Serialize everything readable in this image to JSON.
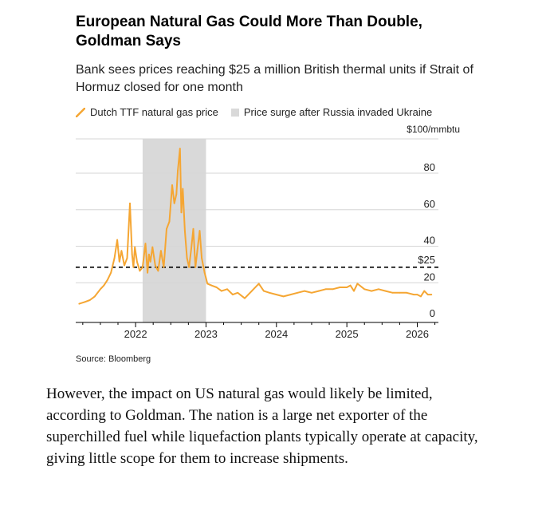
{
  "article": {
    "title": "European Natural Gas Could More Than Double, Goldman Says",
    "subtitle": "Bank sees prices reaching $25 a million British thermal units if Strait of Hormuz closed for one month",
    "source": "Source: Bloomberg",
    "body": "However, the impact on US natural gas would likely be limited, according to Goldman. The nation is a large net exporter of the superchilled fuel while liquefaction plants typically operate at capacity, giving little scope for them to increase shipments."
  },
  "colors": {
    "series": "#f5a633",
    "shade": "#d9d9d9",
    "reference": "#000000",
    "grid": "#d6d6d6",
    "text": "#222222"
  },
  "chart_data": {
    "type": "line",
    "y_unit_label": "$100/mmbtu",
    "ylim": [
      0,
      100
    ],
    "yticks": [
      0,
      20,
      40,
      60,
      80
    ],
    "xticks": [
      "2022",
      "2023",
      "2024",
      "2025",
      "2026"
    ],
    "x_range": [
      2021.15,
      2026.3
    ],
    "grid": true,
    "legend": {
      "placement": "top-left",
      "entries": [
        "Dutch TTF natural gas price",
        "Price surge after Russia invaded Ukraine"
      ]
    },
    "shaded_region": {
      "name": "Price surge after Russia invaded Ukraine",
      "x_start": 2022.1,
      "x_end": 2023.0
    },
    "reference_line": {
      "label": "$25",
      "value": 25
    },
    "series": [
      {
        "name": "Dutch TTF natural gas price",
        "x": [
          2021.2,
          2021.28,
          2021.35,
          2021.42,
          2021.5,
          2021.55,
          2021.6,
          2021.65,
          2021.7,
          2021.74,
          2021.77,
          2021.8,
          2021.84,
          2021.88,
          2021.92,
          2021.95,
          2021.97,
          2021.99,
          2022.02,
          2022.06,
          2022.1,
          2022.14,
          2022.17,
          2022.19,
          2022.21,
          2022.24,
          2022.28,
          2022.32,
          2022.36,
          2022.4,
          2022.44,
          2022.48,
          2022.52,
          2022.55,
          2022.58,
          2022.6,
          2022.63,
          2022.65,
          2022.67,
          2022.7,
          2022.73,
          2022.76,
          2022.79,
          2022.82,
          2022.85,
          2022.88,
          2022.91,
          2022.94,
          2022.98,
          2023.02,
          2023.08,
          2023.15,
          2023.22,
          2023.3,
          2023.38,
          2023.45,
          2023.55,
          2023.65,
          2023.75,
          2023.82,
          2023.9,
          2024.0,
          2024.1,
          2024.2,
          2024.3,
          2024.4,
          2024.5,
          2024.6,
          2024.7,
          2024.8,
          2024.9,
          2025.0,
          2025.05,
          2025.1,
          2025.15,
          2025.25,
          2025.35,
          2025.45,
          2025.55,
          2025.65,
          2025.75,
          2025.85,
          2025.95,
          2026.0,
          2026.05,
          2026.1,
          2026.15,
          2026.2
        ],
        "values": [
          5,
          6,
          7,
          9,
          13,
          15,
          18,
          22,
          30,
          40,
          28,
          34,
          26,
          30,
          60,
          32,
          25,
          36,
          28,
          23,
          25,
          38,
          22,
          32,
          28,
          36,
          26,
          23,
          34,
          25,
          46,
          50,
          70,
          60,
          65,
          78,
          90,
          55,
          68,
          45,
          30,
          25,
          35,
          46,
          25,
          35,
          45,
          30,
          22,
          16,
          15,
          14,
          12,
          13,
          10,
          11,
          8,
          12,
          16,
          12,
          11,
          10,
          9,
          10,
          11,
          12,
          11,
          12,
          13,
          13,
          14,
          14,
          15,
          12,
          16,
          13,
          12,
          13,
          12,
          11,
          11,
          11,
          10,
          10,
          9,
          12,
          10,
          10
        ]
      }
    ]
  }
}
